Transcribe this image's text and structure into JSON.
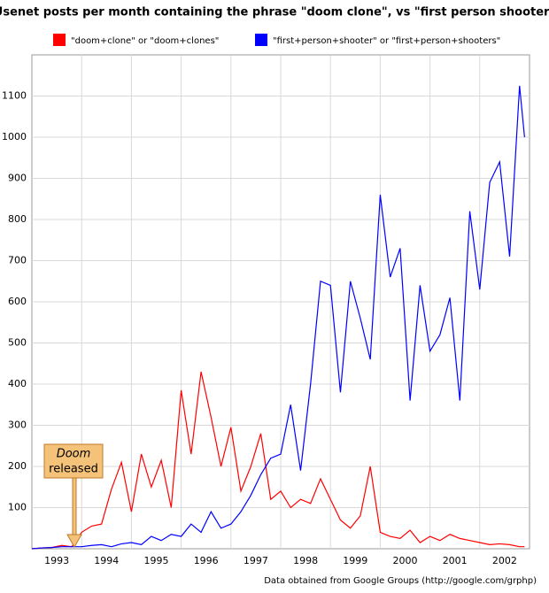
{
  "chart_data": {
    "type": "line",
    "title": "Usenet posts per month containing the phrase \"doom clone\", vs \"first person shooter\"",
    "footer": "Data obtained from Google Groups (http://google.com/grphp)",
    "annotation": [
      "Doom",
      "released"
    ],
    "x": [
      1993.0,
      1993.2,
      1993.4,
      1993.6,
      1993.8,
      1994.0,
      1994.2,
      1994.4,
      1994.6,
      1994.8,
      1995.0,
      1995.2,
      1995.4,
      1995.6,
      1995.8,
      1996.0,
      1996.2,
      1996.4,
      1996.6,
      1996.8,
      1997.0,
      1997.2,
      1997.4,
      1997.6,
      1997.8,
      1998.0,
      1998.2,
      1998.4,
      1998.6,
      1998.8,
      1999.0,
      1999.2,
      1999.4,
      1999.6,
      1999.8,
      2000.0,
      2000.2,
      2000.4,
      2000.6,
      2000.8,
      2001.0,
      2001.2,
      2001.4,
      2001.6,
      2001.8,
      2002.0,
      2002.2,
      2002.4,
      2002.6,
      2002.8,
      2002.9
    ],
    "series": [
      {
        "name": "\"doom+clone\" or \"doom+clones\"",
        "color": "#ff0000",
        "values": [
          0,
          2,
          3,
          8,
          5,
          40,
          55,
          60,
          145,
          210,
          90,
          230,
          150,
          215,
          100,
          385,
          230,
          430,
          320,
          200,
          295,
          140,
          200,
          280,
          120,
          140,
          100,
          120,
          110,
          170,
          120,
          70,
          50,
          80,
          200,
          40,
          30,
          25,
          45,
          15,
          30,
          20,
          35,
          25,
          20,
          15,
          10,
          12,
          10,
          5,
          5
        ]
      },
      {
        "name": "\"first+person+shooter\" or \"first+person+shooters\"",
        "color": "#0000ff",
        "values": [
          0,
          2,
          3,
          5,
          5,
          5,
          8,
          10,
          5,
          12,
          15,
          10,
          30,
          20,
          35,
          30,
          60,
          40,
          90,
          50,
          60,
          90,
          130,
          180,
          220,
          230,
          350,
          190,
          400,
          650,
          640,
          380,
          650,
          560,
          460,
          860,
          660,
          730,
          360,
          640,
          480,
          520,
          610,
          360,
          820,
          630,
          890,
          940,
          710,
          1125,
          1000
        ]
      }
    ],
    "xlim": [
      1993,
      2003
    ],
    "xticks": [
      {
        "value": 1993.5,
        "label": "1993"
      },
      {
        "value": 1994.5,
        "label": "1994"
      },
      {
        "value": 1995.5,
        "label": "1995"
      },
      {
        "value": 1996.5,
        "label": "1996"
      },
      {
        "value": 1997.5,
        "label": "1997"
      },
      {
        "value": 1998.5,
        "label": "1998"
      },
      {
        "value": 1999.5,
        "label": "1999"
      },
      {
        "value": 2000.5,
        "label": "2000"
      },
      {
        "value": 2001.5,
        "label": "2001"
      },
      {
        "value": 2002.5,
        "label": "2002"
      }
    ],
    "xgrid": [
      1994,
      1995,
      1996,
      1997,
      1998,
      1999,
      2000,
      2001,
      2002
    ],
    "ylim": [
      0,
      1200
    ],
    "yticks": [
      100,
      200,
      300,
      400,
      500,
      600,
      700,
      800,
      900,
      1000,
      1100
    ],
    "grid": true
  }
}
